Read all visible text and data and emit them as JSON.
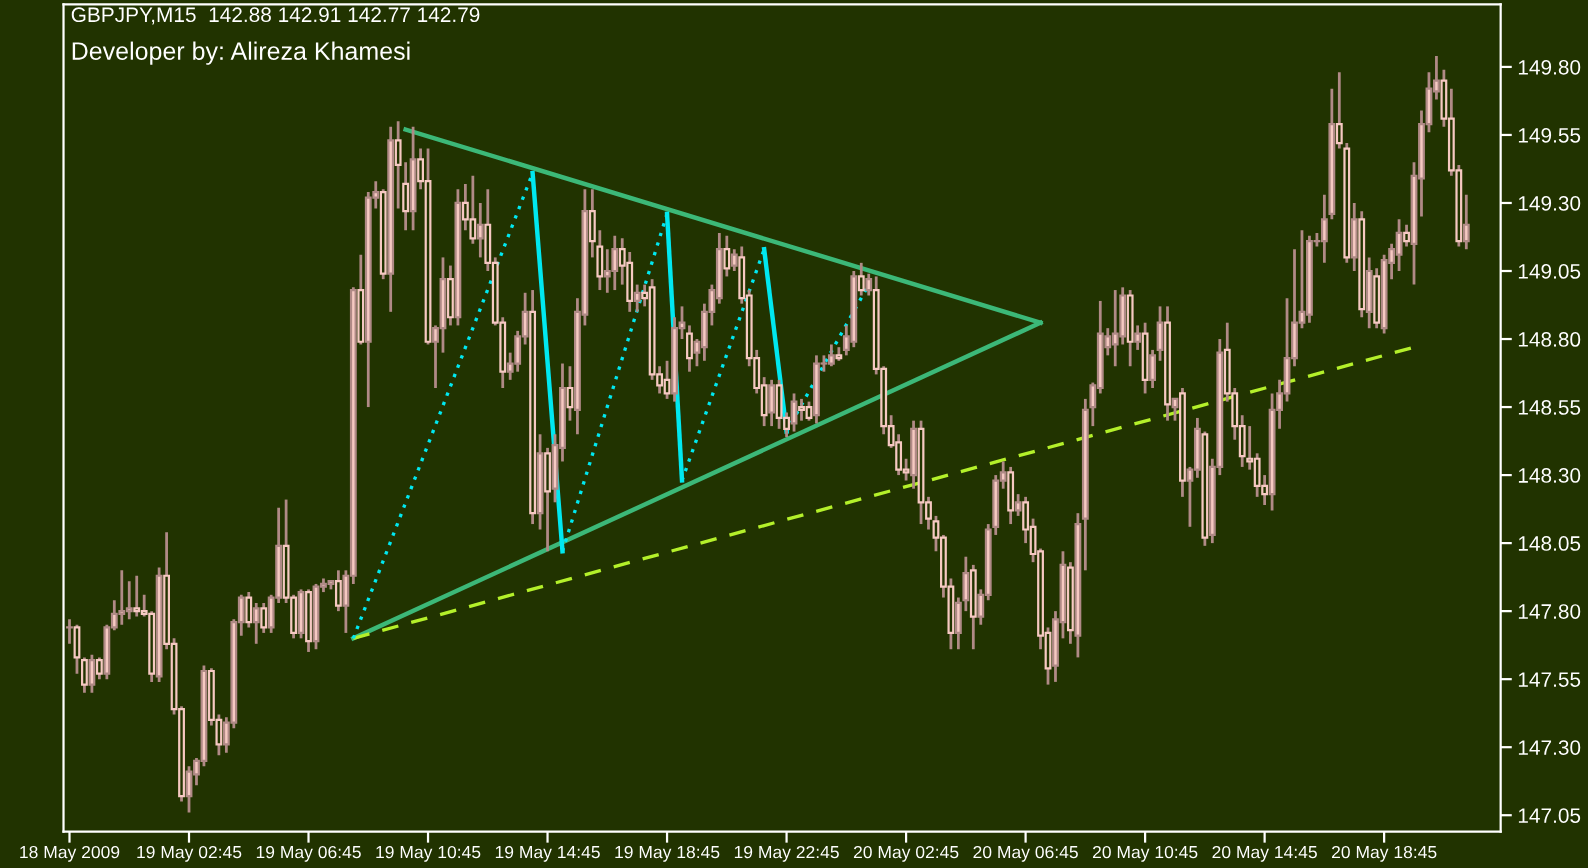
{
  "chart_data": {
    "type": "candlestick",
    "title": "GBPJPY,M15  142.88 142.91 142.77 142.79",
    "subtitle": "Developer by: Alireza Khamesi",
    "color": "#f6c9c2",
    "x": [
      "2009-05-18T22:45",
      "2009-05-18T23:00",
      "2009-05-18T23:15",
      "2009-05-18T23:30",
      "2009-05-18T23:45",
      "2009-05-19T00:00",
      "2009-05-19T00:15",
      "2009-05-19T00:30",
      "2009-05-19T00:45",
      "2009-05-19T01:00",
      "2009-05-19T01:15",
      "2009-05-19T01:30",
      "2009-05-19T01:45",
      "2009-05-19T02:00",
      "2009-05-19T02:15",
      "2009-05-19T02:30",
      "2009-05-19T02:45",
      "2009-05-19T03:00",
      "2009-05-19T03:15",
      "2009-05-19T03:30",
      "2009-05-19T03:45",
      "2009-05-19T04:00",
      "2009-05-19T04:15",
      "2009-05-19T04:30",
      "2009-05-19T04:45",
      "2009-05-19T05:00",
      "2009-05-19T05:15",
      "2009-05-19T05:30",
      "2009-05-19T05:45",
      "2009-05-19T06:00",
      "2009-05-19T06:15",
      "2009-05-19T06:30",
      "2009-05-19T06:45",
      "2009-05-19T07:00",
      "2009-05-19T07:15",
      "2009-05-19T07:30",
      "2009-05-19T07:45",
      "2009-05-19T08:00",
      "2009-05-19T08:15",
      "2009-05-19T08:30",
      "2009-05-19T08:45",
      "2009-05-19T09:00",
      "2009-05-19T09:15",
      "2009-05-19T09:30",
      "2009-05-19T09:45",
      "2009-05-19T10:00",
      "2009-05-19T10:15",
      "2009-05-19T10:30",
      "2009-05-19T10:45",
      "2009-05-19T11:00",
      "2009-05-19T11:15",
      "2009-05-19T11:30",
      "2009-05-19T11:45",
      "2009-05-19T12:00",
      "2009-05-19T12:15",
      "2009-05-19T12:30",
      "2009-05-19T12:45",
      "2009-05-19T13:00",
      "2009-05-19T13:15",
      "2009-05-19T13:30",
      "2009-05-19T13:45",
      "2009-05-19T14:00",
      "2009-05-19T14:15",
      "2009-05-19T14:30",
      "2009-05-19T14:45",
      "2009-05-19T15:00",
      "2009-05-19T15:15",
      "2009-05-19T15:30",
      "2009-05-19T15:45",
      "2009-05-19T16:00",
      "2009-05-19T16:15",
      "2009-05-19T16:30",
      "2009-05-19T16:45",
      "2009-05-19T17:00",
      "2009-05-19T17:15",
      "2009-05-19T17:30",
      "2009-05-19T17:45",
      "2009-05-19T18:00",
      "2009-05-19T18:15",
      "2009-05-19T18:30",
      "2009-05-19T18:45",
      "2009-05-19T19:00",
      "2009-05-19T19:15",
      "2009-05-19T19:30",
      "2009-05-19T19:45",
      "2009-05-19T20:00",
      "2009-05-19T20:15",
      "2009-05-19T20:30",
      "2009-05-19T20:45",
      "2009-05-19T21:00",
      "2009-05-19T21:15",
      "2009-05-19T21:30",
      "2009-05-19T21:45",
      "2009-05-19T22:00",
      "2009-05-19T22:15",
      "2009-05-19T22:30",
      "2009-05-19T22:45",
      "2009-05-19T23:00",
      "2009-05-19T23:15",
      "2009-05-19T23:30",
      "2009-05-19T23:45",
      "2009-05-20T00:00",
      "2009-05-20T00:15",
      "2009-05-20T00:30",
      "2009-05-20T00:45",
      "2009-05-20T01:00",
      "2009-05-20T01:15",
      "2009-05-20T01:30",
      "2009-05-20T01:45",
      "2009-05-20T02:00",
      "2009-05-20T02:15",
      "2009-05-20T02:30",
      "2009-05-20T02:45",
      "2009-05-20T03:00",
      "2009-05-20T03:15",
      "2009-05-20T03:30",
      "2009-05-20T03:45",
      "2009-05-20T04:00",
      "2009-05-20T04:15",
      "2009-05-20T04:30",
      "2009-05-20T04:45",
      "2009-05-20T05:00",
      "2009-05-20T05:15",
      "2009-05-20T05:30",
      "2009-05-20T05:45",
      "2009-05-20T06:00",
      "2009-05-20T06:15",
      "2009-05-20T06:30",
      "2009-05-20T06:45",
      "2009-05-20T07:00",
      "2009-05-20T07:15",
      "2009-05-20T07:30",
      "2009-05-20T07:45",
      "2009-05-20T08:00",
      "2009-05-20T08:15",
      "2009-05-20T08:30",
      "2009-05-20T08:45",
      "2009-05-20T09:00",
      "2009-05-20T09:15",
      "2009-05-20T09:30",
      "2009-05-20T09:45",
      "2009-05-20T10:00",
      "2009-05-20T10:15",
      "2009-05-20T10:30",
      "2009-05-20T10:45",
      "2009-05-20T11:00",
      "2009-05-20T11:15",
      "2009-05-20T11:30",
      "2009-05-20T11:45",
      "2009-05-20T12:00",
      "2009-05-20T12:15",
      "2009-05-20T12:30",
      "2009-05-20T12:45",
      "2009-05-20T13:00",
      "2009-05-20T13:15",
      "2009-05-20T13:30",
      "2009-05-20T13:45",
      "2009-05-20T14:00",
      "2009-05-20T14:15",
      "2009-05-20T14:30",
      "2009-05-20T14:45",
      "2009-05-20T15:00",
      "2009-05-20T15:15",
      "2009-05-20T15:30",
      "2009-05-20T15:45",
      "2009-05-20T16:00",
      "2009-05-20T16:15",
      "2009-05-20T16:30",
      "2009-05-20T16:45",
      "2009-05-20T17:00",
      "2009-05-20T17:15",
      "2009-05-20T17:30",
      "2009-05-20T17:45",
      "2009-05-20T18:00",
      "2009-05-20T18:15",
      "2009-05-20T18:30",
      "2009-05-20T18:45",
      "2009-05-20T19:00",
      "2009-05-20T19:15",
      "2009-05-20T19:30",
      "2009-05-20T19:45",
      "2009-05-20T20:00",
      "2009-05-20T20:15",
      "2009-05-20T20:30",
      "2009-05-20T20:45",
      "2009-05-20T21:00",
      "2009-05-20T21:15",
      "2009-05-20T21:30"
    ],
    "ohlc": [
      [
        147.74,
        147.77,
        147.68,
        147.74
      ],
      [
        147.74,
        147.75,
        147.57,
        147.63
      ],
      [
        147.62,
        147.63,
        147.5,
        147.53
      ],
      [
        147.53,
        147.64,
        147.5,
        147.62
      ],
      [
        147.62,
        147.63,
        147.55,
        147.57
      ],
      [
        147.57,
        147.75,
        147.55,
        147.74
      ],
      [
        147.74,
        147.84,
        147.73,
        147.79
      ],
      [
        147.79,
        147.95,
        147.75,
        147.8
      ],
      [
        147.8,
        147.91,
        147.77,
        147.81
      ],
      [
        147.81,
        147.93,
        147.78,
        147.8
      ],
      [
        147.8,
        147.86,
        147.78,
        147.79
      ],
      [
        147.79,
        147.8,
        147.54,
        147.57
      ],
      [
        147.56,
        147.96,
        147.54,
        147.93
      ],
      [
        147.93,
        148.09,
        147.66,
        147.68
      ],
      [
        147.68,
        147.7,
        147.42,
        147.44
      ],
      [
        147.44,
        147.45,
        147.1,
        147.12
      ],
      [
        147.12,
        147.23,
        147.06,
        147.21
      ],
      [
        147.2,
        147.26,
        147.16,
        147.25
      ],
      [
        147.25,
        147.6,
        147.23,
        147.58
      ],
      [
        147.58,
        147.59,
        147.38,
        147.4
      ],
      [
        147.4,
        147.42,
        147.27,
        147.31
      ],
      [
        147.31,
        147.41,
        147.28,
        147.39
      ],
      [
        147.39,
        147.77,
        147.37,
        147.76
      ],
      [
        147.76,
        147.86,
        147.71,
        147.85
      ],
      [
        147.85,
        147.87,
        147.74,
        147.76
      ],
      [
        147.76,
        147.83,
        147.68,
        147.81
      ],
      [
        147.81,
        147.83,
        147.72,
        147.74
      ],
      [
        147.74,
        147.86,
        147.72,
        147.85
      ],
      [
        147.85,
        148.18,
        147.83,
        148.04
      ],
      [
        148.04,
        148.21,
        147.83,
        147.85
      ],
      [
        147.85,
        147.86,
        147.7,
        147.72
      ],
      [
        147.72,
        147.88,
        147.7,
        147.87
      ],
      [
        147.87,
        147.88,
        147.65,
        147.69
      ],
      [
        147.69,
        147.9,
        147.66,
        147.89
      ],
      [
        147.89,
        147.92,
        147.87,
        147.9
      ],
      [
        147.9,
        147.91,
        147.88,
        147.91
      ],
      [
        147.91,
        147.95,
        147.8,
        147.82
      ],
      [
        147.82,
        147.95,
        147.72,
        147.93
      ],
      [
        147.93,
        148.99,
        147.9,
        148.98
      ],
      [
        148.98,
        149.11,
        148.78,
        148.79
      ],
      [
        148.79,
        149.34,
        148.55,
        149.32
      ],
      [
        149.32,
        149.38,
        149.28,
        149.34
      ],
      [
        149.34,
        149.35,
        149.02,
        149.04
      ],
      [
        149.04,
        149.58,
        148.9,
        149.53
      ],
      [
        149.53,
        149.6,
        149.28,
        149.44
      ],
      [
        149.37,
        149.45,
        149.2,
        149.27
      ],
      [
        149.27,
        149.58,
        149.2,
        149.46
      ],
      [
        149.46,
        149.5,
        149.35,
        149.38
      ],
      [
        149.38,
        149.5,
        148.78,
        148.79
      ],
      [
        148.79,
        148.85,
        148.62,
        148.84
      ],
      [
        148.84,
        149.1,
        148.75,
        149.02
      ],
      [
        149.02,
        149.07,
        148.85,
        148.88
      ],
      [
        148.88,
        149.35,
        148.85,
        149.3
      ],
      [
        149.3,
        149.37,
        149.2,
        149.24
      ],
      [
        149.24,
        149.4,
        149.15,
        149.17
      ],
      [
        149.17,
        149.3,
        149.1,
        149.22
      ],
      [
        149.22,
        149.35,
        149.05,
        149.08
      ],
      [
        149.08,
        149.1,
        148.85,
        148.86
      ],
      [
        148.86,
        148.88,
        148.62,
        148.68
      ],
      [
        148.68,
        148.75,
        148.65,
        148.71
      ],
      [
        148.71,
        148.83,
        148.68,
        148.81
      ],
      [
        148.81,
        148.97,
        148.78,
        148.9
      ],
      [
        148.9,
        148.98,
        148.12,
        148.16
      ],
      [
        148.16,
        148.45,
        148.1,
        148.38
      ],
      [
        148.38,
        148.4,
        148.02,
        148.24
      ],
      [
        148.25,
        148.45,
        148.2,
        148.41
      ],
      [
        148.4,
        148.71,
        148.35,
        148.62
      ],
      [
        148.62,
        148.7,
        148.5,
        148.55
      ],
      [
        148.54,
        148.95,
        148.45,
        148.9
      ],
      [
        148.89,
        149.35,
        148.85,
        149.27
      ],
      [
        149.27,
        149.35,
        149.1,
        149.16
      ],
      [
        149.14,
        149.2,
        148.98,
        149.03
      ],
      [
        149.03,
        149.13,
        148.97,
        149.05
      ],
      [
        149.05,
        149.18,
        148.98,
        149.13
      ],
      [
        149.13,
        149.17,
        149.0,
        149.07
      ],
      [
        149.08,
        149.12,
        148.9,
        148.94
      ],
      [
        148.94,
        149.0,
        148.9,
        148.97
      ],
      [
        148.97,
        149.0,
        148.92,
        148.95
      ],
      [
        148.99,
        149.02,
        148.65,
        148.67
      ],
      [
        148.67,
        148.7,
        148.6,
        148.63
      ],
      [
        148.65,
        148.72,
        148.58,
        148.6
      ],
      [
        148.6,
        148.88,
        148.57,
        148.84
      ],
      [
        148.84,
        148.92,
        148.8,
        148.86
      ],
      [
        148.82,
        148.85,
        148.68,
        148.73
      ],
      [
        148.75,
        148.8,
        148.7,
        148.79
      ],
      [
        148.77,
        148.93,
        148.72,
        148.9
      ],
      [
        148.9,
        149.0,
        148.85,
        148.98
      ],
      [
        148.95,
        149.19,
        148.93,
        149.13
      ],
      [
        149.13,
        149.18,
        149.03,
        149.06
      ],
      [
        149.07,
        149.13,
        149.05,
        149.11
      ],
      [
        149.1,
        149.14,
        148.93,
        148.95
      ],
      [
        148.96,
        148.98,
        148.7,
        148.73
      ],
      [
        148.73,
        148.76,
        148.6,
        148.62
      ],
      [
        148.63,
        148.66,
        148.48,
        148.52
      ],
      [
        148.53,
        148.65,
        148.48,
        148.63
      ],
      [
        148.63,
        148.65,
        148.47,
        148.51
      ],
      [
        148.51,
        148.53,
        148.44,
        148.47
      ],
      [
        148.49,
        148.6,
        148.46,
        148.57
      ],
      [
        148.55,
        148.58,
        148.5,
        148.54
      ],
      [
        148.55,
        148.57,
        148.5,
        148.51
      ],
      [
        148.52,
        148.74,
        148.49,
        148.71
      ],
      [
        148.71,
        148.74,
        148.68,
        148.71
      ],
      [
        148.71,
        148.78,
        148.7,
        148.74
      ],
      [
        148.74,
        148.77,
        148.72,
        148.73
      ],
      [
        148.76,
        148.85,
        148.74,
        148.81
      ],
      [
        148.79,
        149.05,
        148.77,
        149.03
      ],
      [
        149.03,
        149.08,
        148.96,
        148.98
      ],
      [
        148.98,
        149.04,
        148.96,
        149.02
      ],
      [
        148.98,
        149.03,
        148.67,
        148.69
      ],
      [
        148.69,
        148.7,
        148.45,
        148.48
      ],
      [
        148.48,
        148.52,
        148.4,
        148.41
      ],
      [
        148.42,
        148.45,
        148.3,
        148.32
      ],
      [
        148.32,
        148.36,
        148.28,
        148.31
      ],
      [
        148.3,
        148.5,
        148.25,
        148.47
      ],
      [
        148.47,
        148.5,
        148.12,
        148.2
      ],
      [
        148.2,
        148.22,
        148.1,
        148.14
      ],
      [
        148.13,
        148.15,
        148.02,
        148.07
      ],
      [
        148.07,
        148.08,
        147.85,
        147.89
      ],
      [
        147.89,
        147.92,
        147.66,
        147.72
      ],
      [
        147.72,
        147.85,
        147.66,
        147.83
      ],
      [
        147.84,
        148.0,
        147.8,
        147.94
      ],
      [
        147.95,
        147.97,
        147.66,
        147.78
      ],
      [
        147.78,
        147.88,
        147.75,
        147.86
      ],
      [
        147.86,
        148.12,
        147.84,
        148.1
      ],
      [
        148.11,
        148.3,
        148.08,
        148.28
      ],
      [
        148.28,
        148.35,
        148.25,
        148.31
      ],
      [
        148.31,
        148.33,
        148.12,
        148.17
      ],
      [
        148.17,
        148.23,
        148.15,
        148.2
      ],
      [
        148.2,
        148.22,
        148.05,
        148.1
      ],
      [
        148.11,
        148.14,
        147.98,
        148.01
      ],
      [
        148.02,
        148.03,
        147.66,
        147.71
      ],
      [
        147.72,
        147.74,
        147.53,
        147.59
      ],
      [
        147.6,
        147.8,
        147.54,
        147.77
      ],
      [
        147.76,
        148.02,
        147.7,
        147.97
      ],
      [
        147.96,
        147.98,
        147.68,
        147.73
      ],
      [
        147.71,
        148.16,
        147.63,
        148.12
      ],
      [
        148.14,
        148.58,
        147.95,
        148.54
      ],
      [
        148.55,
        148.64,
        148.48,
        148.63
      ],
      [
        148.62,
        148.94,
        148.6,
        148.82
      ],
      [
        148.77,
        148.84,
        148.74,
        148.81
      ],
      [
        148.78,
        148.98,
        148.7,
        148.82
      ],
      [
        148.81,
        148.99,
        148.78,
        148.96
      ],
      [
        148.96,
        148.98,
        148.7,
        148.79
      ],
      [
        148.79,
        148.85,
        148.76,
        148.82
      ],
      [
        148.82,
        148.86,
        148.6,
        148.65
      ],
      [
        148.65,
        148.76,
        148.62,
        148.74
      ],
      [
        148.76,
        148.92,
        148.72,
        148.86
      ],
      [
        148.86,
        148.92,
        148.5,
        148.56
      ],
      [
        148.55,
        148.58,
        148.5,
        148.58
      ],
      [
        148.6,
        148.62,
        148.22,
        148.28
      ],
      [
        148.28,
        148.33,
        148.11,
        148.32
      ],
      [
        148.32,
        148.51,
        148.29,
        148.47
      ],
      [
        148.45,
        148.46,
        148.04,
        148.07
      ],
      [
        148.08,
        148.36,
        148.05,
        148.33
      ],
      [
        148.33,
        148.8,
        148.3,
        148.75
      ],
      [
        148.76,
        148.86,
        148.57,
        148.6
      ],
      [
        148.6,
        148.62,
        148.43,
        148.48
      ],
      [
        148.48,
        148.52,
        148.33,
        148.37
      ],
      [
        148.36,
        148.48,
        148.32,
        148.35
      ],
      [
        148.36,
        148.38,
        148.22,
        148.26
      ],
      [
        148.26,
        148.3,
        148.19,
        148.23
      ],
      [
        148.23,
        148.6,
        148.17,
        148.54
      ],
      [
        148.54,
        148.65,
        148.47,
        148.6
      ],
      [
        148.6,
        148.95,
        148.57,
        148.73
      ],
      [
        148.73,
        149.13,
        148.7,
        148.86
      ],
      [
        148.86,
        149.2,
        148.84,
        148.9
      ],
      [
        148.89,
        149.18,
        148.86,
        149.16
      ],
      [
        149.16,
        149.19,
        149.14,
        149.16
      ],
      [
        149.16,
        149.33,
        149.08,
        149.24
      ],
      [
        149.26,
        149.72,
        149.24,
        149.59
      ],
      [
        149.59,
        149.78,
        149.5,
        149.52
      ],
      [
        149.5,
        149.52,
        149.08,
        149.1
      ],
      [
        149.1,
        149.3,
        149.05,
        149.24
      ],
      [
        149.24,
        149.27,
        148.88,
        148.91
      ],
      [
        148.9,
        149.1,
        148.84,
        149.05
      ],
      [
        149.03,
        149.06,
        148.84,
        148.86
      ],
      [
        148.84,
        149.11,
        148.82,
        149.09
      ],
      [
        149.08,
        149.15,
        149.02,
        149.13
      ],
      [
        149.11,
        149.24,
        149.05,
        149.19
      ],
      [
        149.19,
        149.22,
        149.14,
        149.16
      ],
      [
        149.15,
        149.45,
        149.0,
        149.4
      ],
      [
        149.39,
        149.64,
        149.25,
        149.59
      ],
      [
        149.59,
        149.78,
        149.56,
        149.72
      ],
      [
        149.71,
        149.84,
        149.68,
        149.75
      ],
      [
        149.75,
        149.79,
        149.58,
        149.61
      ],
      [
        149.61,
        149.72,
        149.4,
        149.42
      ],
      [
        149.42,
        149.44,
        149.14,
        149.16
      ],
      [
        149.16,
        149.33,
        149.13,
        149.22
      ]
    ],
    "series": [
      {
        "type": "line",
        "color": "#3cb878",
        "line_style": "solid",
        "x": [
          "2009-05-19T10:00",
          "2009-05-20T07:15"
        ],
        "values": [
          149.57,
          148.86
        ]
      },
      {
        "type": "line",
        "color": "#3cb878",
        "line_style": "solid",
        "x": [
          "2009-05-19T08:15",
          "2009-05-20T07:15"
        ],
        "values": [
          147.7,
          148.86
        ]
      },
      {
        "type": "line",
        "color": "#b4f02a",
        "line_style": "dashed",
        "x": [
          "2009-05-19T08:15",
          "2009-05-20T19:45"
        ],
        "values": [
          147.7,
          148.77
        ]
      },
      {
        "type": "line",
        "color": "#00e8f0",
        "line_style": "dotted",
        "x": [
          "2009-05-19T08:15",
          "2009-05-19T14:15"
        ],
        "values": [
          147.7,
          149.41
        ]
      },
      {
        "type": "line",
        "color": "#00e8f0",
        "line_style": "solid",
        "x": [
          "2009-05-19T14:15",
          "2009-05-19T15:15"
        ],
        "values": [
          149.41,
          148.02
        ]
      },
      {
        "type": "line",
        "color": "#00e8f0",
        "line_style": "dotted",
        "x": [
          "2009-05-19T15:15",
          "2009-05-19T18:45"
        ],
        "values": [
          148.02,
          149.26
        ]
      },
      {
        "type": "line",
        "color": "#00e8f0",
        "line_style": "solid",
        "x": [
          "2009-05-19T18:45",
          "2009-05-19T19:15"
        ],
        "values": [
          149.26,
          148.28
        ]
      },
      {
        "type": "line",
        "color": "#00e8f0",
        "line_style": "dotted",
        "x": [
          "2009-05-19T19:15",
          "2009-05-19T22:00"
        ],
        "values": [
          148.28,
          149.13
        ]
      },
      {
        "type": "line",
        "color": "#00e8f0",
        "line_style": "solid",
        "x": [
          "2009-05-19T22:00",
          "2009-05-19T22:45"
        ],
        "values": [
          149.13,
          148.46
        ]
      },
      {
        "type": "line",
        "color": "#00e8f0",
        "line_style": "dotted",
        "x": [
          "2009-05-19T22:45",
          "2009-05-20T01:30"
        ],
        "values": [
          148.46,
          149.0
        ]
      }
    ],
    "xlim": [
      "2009-05-18T22:33",
      "2009-05-20T22:39"
    ],
    "xticks": [
      {
        "value": "2009-05-18T22:45",
        "label": "18 May 2009"
      },
      {
        "value": "2009-05-19T02:45",
        "label": "19 May 02:45"
      },
      {
        "value": "2009-05-19T06:45",
        "label": "19 May 06:45"
      },
      {
        "value": "2009-05-19T10:45",
        "label": "19 May 10:45"
      },
      {
        "value": "2009-05-19T14:45",
        "label": "19 May 14:45"
      },
      {
        "value": "2009-05-19T18:45",
        "label": "19 May 18:45"
      },
      {
        "value": "2009-05-19T22:45",
        "label": "19 May 22:45"
      },
      {
        "value": "2009-05-20T02:45",
        "label": "20 May 02:45"
      },
      {
        "value": "2009-05-20T06:45",
        "label": "20 May 06:45"
      },
      {
        "value": "2009-05-20T10:45",
        "label": "20 May 10:45"
      },
      {
        "value": "2009-05-20T14:45",
        "label": "20 May 14:45"
      },
      {
        "value": "2009-05-20T18:45",
        "label": "20 May 18:45"
      }
    ],
    "ylim": [
      146.99,
      150.03
    ],
    "yticks": [
      {
        "value": 149.8,
        "label": "149.80"
      },
      {
        "value": 149.55,
        "label": "149.55"
      },
      {
        "value": 149.3,
        "label": "149.30"
      },
      {
        "value": 149.05,
        "label": "149.05"
      },
      {
        "value": 148.8,
        "label": "148.80"
      },
      {
        "value": 148.55,
        "label": "148.55"
      },
      {
        "value": 148.3,
        "label": "148.30"
      },
      {
        "value": 148.05,
        "label": "148.05"
      },
      {
        "value": 147.8,
        "label": "147.80"
      },
      {
        "value": 147.55,
        "label": "147.55"
      },
      {
        "value": 147.3,
        "label": "147.30"
      },
      {
        "value": 147.05,
        "label": "147.05"
      }
    ],
    "grid": false,
    "legend": false,
    "marker": "none"
  }
}
